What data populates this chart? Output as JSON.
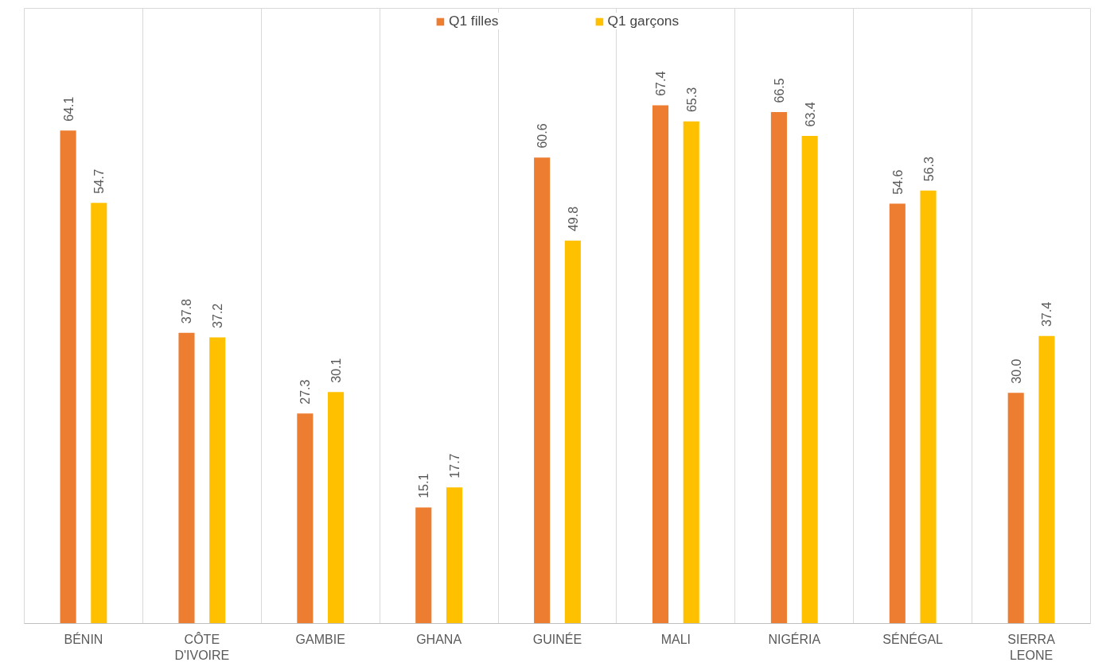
{
  "chart_data": {
    "type": "bar",
    "categories": [
      "BÉNIN",
      "CÔTE D'IVOIRE",
      "GAMBIE",
      "GHANA",
      "GUINÉE",
      "MALI",
      "NIGÉRIA",
      "SÉNÉGAL",
      "SIERRA LEONE"
    ],
    "series": [
      {
        "name": "Q1 filles",
        "color": "#ed7d31",
        "values": [
          64.1,
          37.8,
          27.3,
          15.1,
          60.6,
          67.4,
          66.5,
          54.6,
          30.0
        ],
        "value_labels": [
          "64.1",
          "37.8",
          "27.3",
          "15.1",
          "60.6",
          "67.4",
          "66.5",
          "54.6",
          "30.0"
        ]
      },
      {
        "name": "Q1 garçons",
        "color": "#ffc000",
        "values": [
          54.7,
          37.2,
          30.1,
          17.7,
          49.8,
          65.3,
          63.4,
          56.3,
          37.4
        ],
        "value_labels": [
          "54.7",
          "37.2",
          "30.1",
          "17.7",
          "49.8",
          "65.3",
          "63.4",
          "56.3",
          "37.4"
        ]
      }
    ],
    "ylim": [
      0,
      80
    ],
    "grid": "x",
    "legend": "top",
    "tick_labels": "x"
  }
}
